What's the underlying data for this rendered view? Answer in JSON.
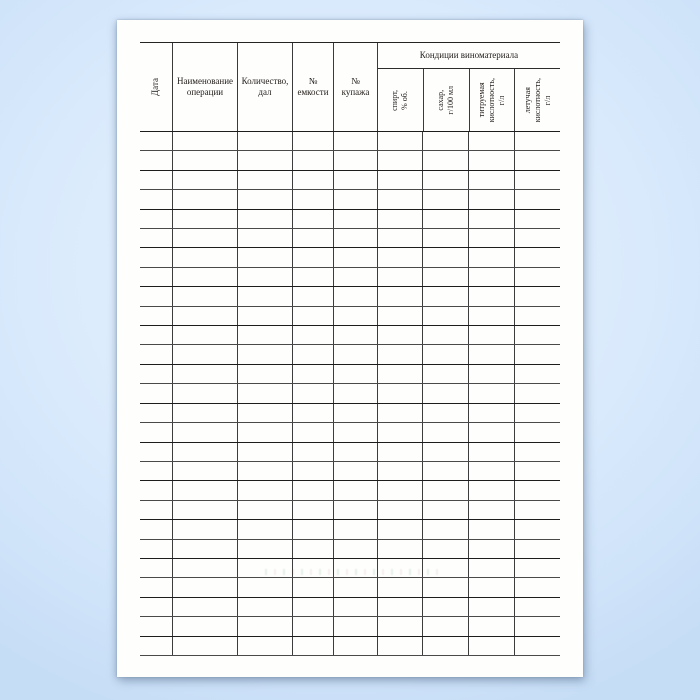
{
  "document": {
    "kind": "blank-wine-material-log-form",
    "table": {
      "columns": [
        {
          "label": "Дата",
          "orientation": "vertical"
        },
        {
          "label": "Наименование\nоперации",
          "orientation": "horizontal"
        },
        {
          "label": "Количество,\nдал",
          "orientation": "horizontal"
        },
        {
          "label": "№\nемкости",
          "orientation": "horizontal"
        },
        {
          "label": "№\nкупажа",
          "orientation": "horizontal"
        }
      ],
      "group": {
        "label": "Кондиции виноматериала",
        "columns": [
          {
            "label": "спирт,\n% об.",
            "orientation": "vertical"
          },
          {
            "label": "сахар,\nг/100 мл",
            "orientation": "vertical"
          },
          {
            "label": "титруемая\nкислотность,\nг/л",
            "orientation": "vertical"
          },
          {
            "label": "летучая\nкислотность,\nг/л",
            "orientation": "vertical"
          }
        ]
      },
      "body_rows": 27,
      "body_cells_per_row": 9,
      "cells_are_empty": true
    },
    "colors": {
      "background": "#d9eafc",
      "page": "#fefefd",
      "rule_line": "#3a3a3a",
      "text": "#211c18"
    }
  }
}
